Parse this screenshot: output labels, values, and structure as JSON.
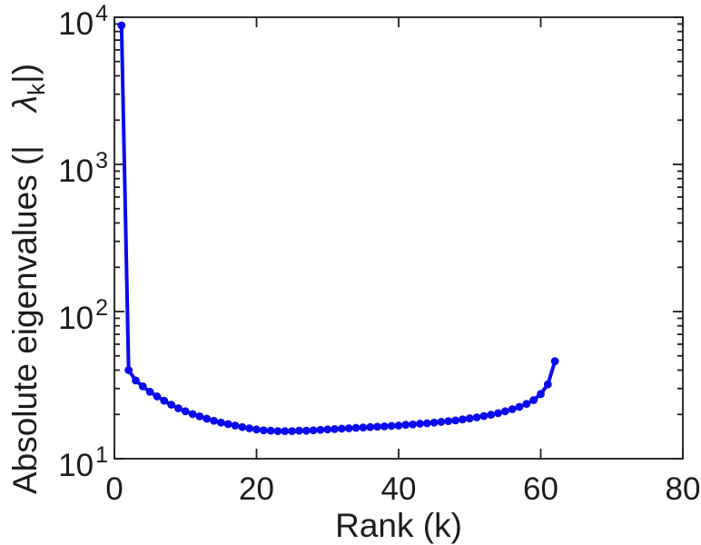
{
  "figure": {
    "background": "#ffffff",
    "axis_color": "#1c1c1c",
    "text_color": "#1c1c1c"
  },
  "chart_data": {
    "type": "line",
    "title": "",
    "xlabel": "Rank (k)",
    "ylabel": "Absolute eigenvalues (| λk|)",
    "ylabel_parts": {
      "prefix": "Absolute eigenvalues (| ",
      "symbol": "λ",
      "subscript": "k",
      "suffix": "|)"
    },
    "grid": false,
    "legend": null,
    "x_axis": {
      "label": "Rank (k)",
      "min": 0,
      "max": 80,
      "ticks": [
        0,
        20,
        40,
        60,
        80
      ],
      "tick_labels": [
        "0",
        "20",
        "40",
        "60",
        "80"
      ]
    },
    "y_axis": {
      "label": "Absolute eigenvalues (|λ_k|)",
      "scale": "log",
      "min": 10,
      "max": 10000,
      "major_ticks": [
        {
          "base": "10",
          "exp": "1",
          "value": 10
        },
        {
          "base": "10",
          "exp": "2",
          "value": 100
        },
        {
          "base": "10",
          "exp": "3",
          "value": 1000
        },
        {
          "base": "10",
          "exp": "4",
          "value": 10000
        }
      ],
      "minor_multipliers": [
        2,
        3,
        4,
        5,
        6,
        7,
        8,
        9
      ],
      "minor_decades": [
        1,
        2,
        3
      ]
    },
    "series": [
      {
        "name": "absolute-eigenvalues",
        "color": "#0a0aef",
        "marker": "circle",
        "line_width": 4,
        "marker_radius": 4.4,
        "x": [
          1,
          2,
          3,
          4,
          5,
          6,
          7,
          8,
          9,
          10,
          11,
          12,
          13,
          14,
          15,
          16,
          17,
          18,
          19,
          20,
          21,
          22,
          23,
          24,
          25,
          26,
          27,
          28,
          29,
          30,
          31,
          32,
          33,
          34,
          35,
          36,
          37,
          38,
          39,
          40,
          41,
          42,
          43,
          44,
          45,
          46,
          47,
          48,
          49,
          50,
          51,
          52,
          53,
          54,
          55,
          56,
          57,
          58,
          59,
          60,
          61,
          62
        ],
        "y": [
          8800,
          40,
          34,
          31,
          28.5,
          26.5,
          24.8,
          23.3,
          22.0,
          21.0,
          20.1,
          19.4,
          18.7,
          18.1,
          17.6,
          17.2,
          16.8,
          16.4,
          16.1,
          15.8,
          15.6,
          15.5,
          15.4,
          15.4,
          15.4,
          15.5,
          15.5,
          15.6,
          15.7,
          15.8,
          15.9,
          16.0,
          16.1,
          16.2,
          16.3,
          16.4,
          16.5,
          16.6,
          16.7,
          16.8,
          17.0,
          17.1,
          17.3,
          17.4,
          17.6,
          17.8,
          18.0,
          18.2,
          18.5,
          18.8,
          19.1,
          19.5,
          19.9,
          20.4,
          21.0,
          21.7,
          22.5,
          23.6,
          25.0,
          27.5,
          32,
          46
        ]
      }
    ]
  }
}
